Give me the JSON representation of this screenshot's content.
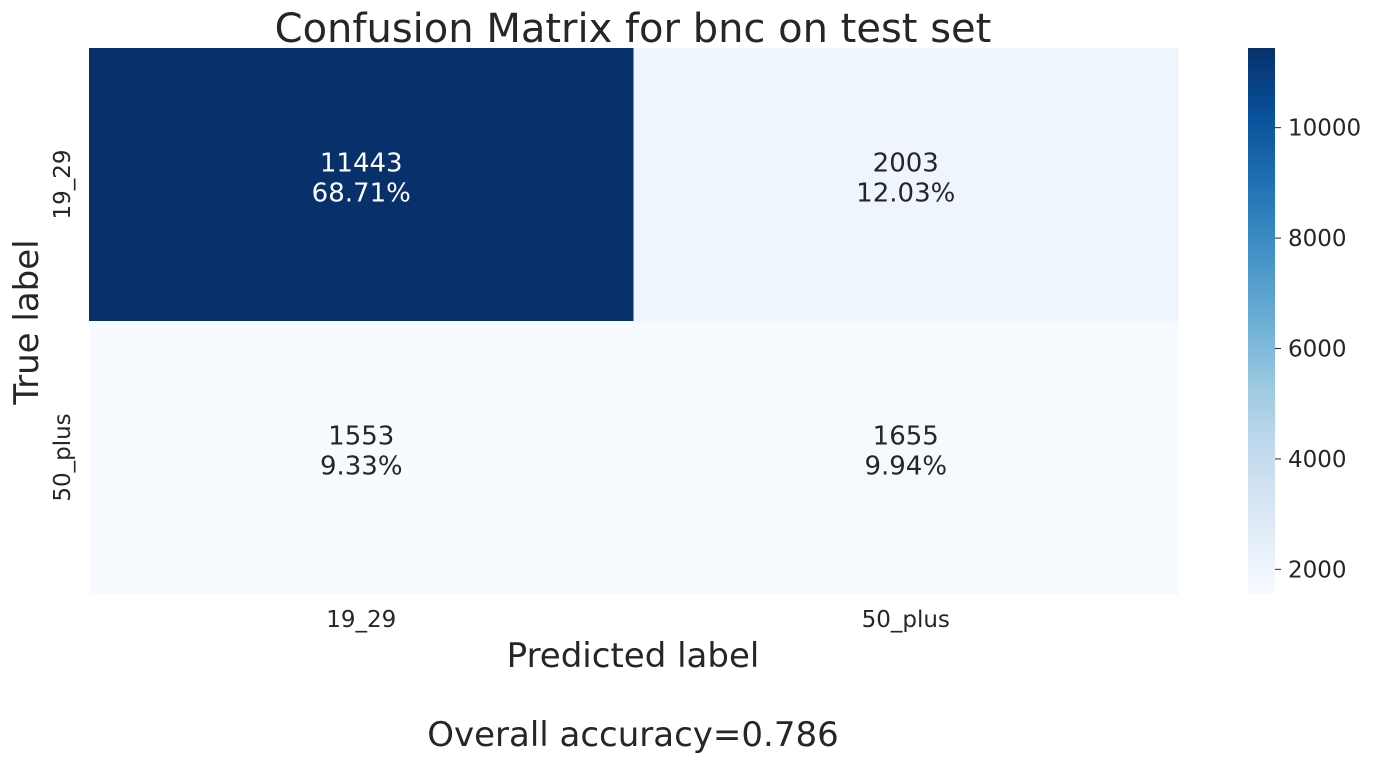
{
  "chart_data": {
    "type": "heatmap",
    "title": "Confusion Matrix for bnc on test set",
    "xlabel": "Predicted label",
    "ylabel": "True label",
    "x_categories": [
      "19_29",
      "50_plus"
    ],
    "y_categories": [
      "19_29",
      "50_plus"
    ],
    "values": [
      [
        11443,
        2003
      ],
      [
        1553,
        1655
      ]
    ],
    "percent_labels": [
      [
        "68.71%",
        "12.03%"
      ],
      [
        "9.33%",
        "9.94%"
      ]
    ],
    "colormap": "Blues",
    "colorbar": {
      "range": [
        1553,
        11443
      ],
      "ticks": [
        2000,
        4000,
        6000,
        8000,
        10000
      ]
    },
    "footer": "Overall accuracy=0.786"
  }
}
